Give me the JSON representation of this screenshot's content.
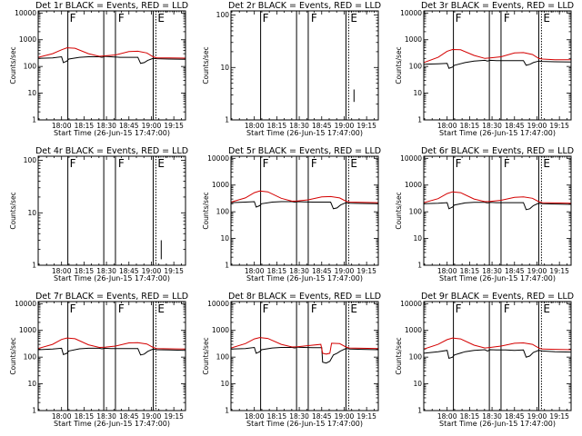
{
  "chart_data": [
    {
      "type": "line",
      "title": "Det 1r BLACK = Events, RED = LLD",
      "xlabel": "Start Time (26-Jun-15 17:47:00)",
      "ylabel": "Counts/sec",
      "yscale": "log",
      "ylim": [
        1,
        12000
      ],
      "xlim": [
        17.74,
        19.38
      ],
      "xticks": [
        "18:00",
        "18:15",
        "18:30",
        "18:45",
        "19:00",
        "19:15"
      ],
      "yticks": [
        "1",
        "10",
        "100",
        "1000",
        "10000"
      ],
      "solid_lines_x": [
        18.07,
        18.47,
        18.6,
        19.02
      ],
      "dotted_lines_x": [
        19.05
      ],
      "flags": [
        {
          "x": 18.08,
          "text": "F"
        },
        {
          "x": 18.62,
          "text": "F"
        },
        {
          "x": 19.06,
          "text": "E"
        }
      ],
      "series": [
        {
          "color": "#000000",
          "x": [
            17.74,
            17.9,
            18.0,
            18.02,
            18.06,
            18.08,
            18.2,
            18.3,
            18.42,
            18.45,
            18.48,
            18.55,
            18.65,
            18.75,
            18.85,
            18.88,
            18.92,
            18.96,
            19.02,
            19.06,
            19.2,
            19.38
          ],
          "y": [
            200,
            210,
            230,
            140,
            160,
            190,
            220,
            230,
            230,
            220,
            240,
            230,
            220,
            220,
            220,
            130,
            140,
            170,
            200,
            195,
            190,
            185
          ]
        },
        {
          "color": "#d40000",
          "x": [
            17.74,
            17.9,
            18.0,
            18.06,
            18.15,
            18.3,
            18.42,
            18.48,
            18.6,
            18.75,
            18.85,
            18.95,
            19.02,
            19.06,
            19.2,
            19.38
          ],
          "y": [
            220,
            300,
            420,
            500,
            480,
            300,
            240,
            250,
            270,
            360,
            370,
            320,
            230,
            210,
            210,
            205
          ]
        }
      ]
    },
    {
      "type": "line",
      "title": "Det 2r BLACK = Events, RED = LLD",
      "xlabel": "Start Time (26-Jun-15 17:47:00)",
      "ylabel": "Counts/sec",
      "yscale": "log",
      "ylim": [
        1,
        120
      ],
      "xlim": [
        17.74,
        19.38
      ],
      "xticks": [
        "18:00",
        "18:15",
        "18:30",
        "18:45",
        "19:00",
        "19:15"
      ],
      "yticks": [
        "1",
        "10",
        "100"
      ],
      "solid_lines_x": [
        18.07,
        18.47,
        18.6,
        19.02
      ],
      "dotted_lines_x": [
        19.05
      ],
      "flags": [
        {
          "x": 18.08,
          "text": "F"
        },
        {
          "x": 18.62,
          "text": "F"
        },
        {
          "x": 19.06,
          "text": "E"
        }
      ],
      "series": [
        {
          "color": "#000000",
          "x": [
            19.11,
            19.11
          ],
          "y": [
            2.2,
            3.8
          ]
        }
      ]
    },
    {
      "type": "line",
      "title": "Det 3r BLACK = Events, RED = LLD",
      "xlabel": "Start Time (26-Jun-15 17:47:00)",
      "ylabel": "Counts/sec",
      "yscale": "log",
      "ylim": [
        1,
        12000
      ],
      "xlim": [
        17.74,
        19.38
      ],
      "xticks": [
        "18:00",
        "18:15",
        "18:30",
        "18:45",
        "19:00",
        "19:15"
      ],
      "yticks": [
        "1",
        "10",
        "100",
        "1000",
        "10000"
      ],
      "solid_lines_x": [
        18.07,
        18.47,
        18.6,
        19.02
      ],
      "dotted_lines_x": [
        19.05
      ],
      "flags": [
        {
          "x": 18.08,
          "text": "F"
        },
        {
          "x": 18.62,
          "text": "F"
        },
        {
          "x": 19.06,
          "text": "E"
        }
      ],
      "series": [
        {
          "color": "#000000",
          "x": [
            17.74,
            17.9,
            18.0,
            18.02,
            18.06,
            18.08,
            18.2,
            18.3,
            18.42,
            18.45,
            18.48,
            18.55,
            18.65,
            18.75,
            18.85,
            18.88,
            18.92,
            18.96,
            19.02,
            19.06,
            19.2,
            19.38
          ],
          "y": [
            120,
            125,
            130,
            85,
            95,
            110,
            140,
            160,
            170,
            160,
            170,
            165,
            165,
            165,
            165,
            110,
            120,
            140,
            160,
            155,
            150,
            148
          ]
        },
        {
          "color": "#d40000",
          "x": [
            17.74,
            17.9,
            18.0,
            18.06,
            18.15,
            18.3,
            18.42,
            18.48,
            18.6,
            18.75,
            18.85,
            18.95,
            19.02,
            19.06,
            19.2,
            19.38
          ],
          "y": [
            140,
            220,
            370,
            430,
            420,
            260,
            200,
            210,
            230,
            320,
            330,
            280,
            200,
            190,
            180,
            178
          ]
        }
      ]
    },
    {
      "type": "line",
      "title": "Det 4r BLACK = Events, RED = LLD",
      "xlabel": "Start Time (26-Jun-15 17:47:00)",
      "ylabel": "Counts/sec",
      "yscale": "log",
      "ylim": [
        1,
        120
      ],
      "xlim": [
        17.74,
        19.38
      ],
      "xticks": [
        "18:00",
        "18:15",
        "18:30",
        "18:45",
        "19:00",
        "19:15"
      ],
      "yticks": [
        "1",
        "10",
        "100"
      ],
      "solid_lines_x": [
        18.07,
        18.47,
        18.6,
        19.02
      ],
      "dotted_lines_x": [
        19.05
      ],
      "flags": [
        {
          "x": 18.08,
          "text": "F"
        },
        {
          "x": 18.62,
          "text": "F"
        },
        {
          "x": 19.06,
          "text": "E"
        }
      ],
      "series": [
        {
          "color": "#000000",
          "x": [
            19.11,
            19.11
          ],
          "y": [
            1.3,
            3.0
          ]
        }
      ]
    },
    {
      "type": "line",
      "title": "Det 5r BLACK = Events, RED = LLD",
      "xlabel": "Start Time (26-Jun-15 17:47:00)",
      "ylabel": "Counts/sec",
      "yscale": "log",
      "ylim": [
        1,
        12000
      ],
      "xlim": [
        17.74,
        19.38
      ],
      "xticks": [
        "18:00",
        "18:15",
        "18:30",
        "18:45",
        "19:00",
        "19:15"
      ],
      "yticks": [
        "1",
        "10",
        "100",
        "1000",
        "10000"
      ],
      "solid_lines_x": [
        18.07,
        18.47,
        18.6,
        19.02
      ],
      "dotted_lines_x": [
        19.05
      ],
      "flags": [
        {
          "x": 18.08,
          "text": "F"
        },
        {
          "x": 18.62,
          "text": "F"
        },
        {
          "x": 19.06,
          "text": "E"
        }
      ],
      "series": [
        {
          "color": "#000000",
          "x": [
            17.74,
            17.9,
            18.0,
            18.02,
            18.06,
            18.08,
            18.2,
            18.3,
            18.42,
            18.45,
            18.48,
            18.55,
            18.65,
            18.75,
            18.85,
            18.88,
            18.92,
            18.96,
            19.02,
            19.06,
            19.2,
            19.38
          ],
          "y": [
            220,
            230,
            240,
            150,
            170,
            200,
            230,
            240,
            240,
            230,
            240,
            235,
            230,
            230,
            230,
            130,
            140,
            180,
            220,
            210,
            205,
            200
          ]
        },
        {
          "color": "#d40000",
          "x": [
            17.74,
            17.9,
            18.0,
            18.06,
            18.15,
            18.3,
            18.42,
            18.48,
            18.6,
            18.75,
            18.85,
            18.95,
            19.02,
            19.06,
            19.2,
            19.38
          ],
          "y": [
            230,
            330,
            520,
            600,
            560,
            320,
            250,
            255,
            280,
            360,
            370,
            330,
            250,
            230,
            225,
            220
          ]
        }
      ]
    },
    {
      "type": "line",
      "title": "Det 6r BLACK = Events, RED = LLD",
      "xlabel": "Start Time (26-Jun-15 17:47:00)",
      "ylabel": "Counts/sec",
      "yscale": "log",
      "ylim": [
        1,
        12000
      ],
      "xlim": [
        17.74,
        19.38
      ],
      "xticks": [
        "18:00",
        "18:15",
        "18:30",
        "18:45",
        "19:00",
        "19:15"
      ],
      "yticks": [
        "1",
        "10",
        "100",
        "1000",
        "10000"
      ],
      "solid_lines_x": [
        18.07,
        18.47,
        18.6,
        19.02
      ],
      "dotted_lines_x": [
        19.05
      ],
      "flags": [
        {
          "x": 18.08,
          "text": "F"
        },
        {
          "x": 18.62,
          "text": "F"
        },
        {
          "x": 19.06,
          "text": "E"
        }
      ],
      "series": [
        {
          "color": "#000000",
          "x": [
            17.74,
            17.9,
            18.0,
            18.02,
            18.06,
            18.08,
            18.2,
            18.3,
            18.42,
            18.45,
            18.48,
            18.55,
            18.65,
            18.75,
            18.85,
            18.88,
            18.92,
            18.96,
            19.02,
            19.06,
            19.2,
            19.38
          ],
          "y": [
            200,
            210,
            220,
            130,
            150,
            180,
            215,
            225,
            225,
            215,
            225,
            220,
            220,
            220,
            220,
            120,
            130,
            170,
            210,
            200,
            195,
            190
          ]
        },
        {
          "color": "#d40000",
          "x": [
            17.74,
            17.9,
            18.0,
            18.06,
            18.15,
            18.3,
            18.42,
            18.48,
            18.6,
            18.75,
            18.85,
            18.95,
            19.02,
            19.06,
            19.2,
            19.38
          ],
          "y": [
            220,
            310,
            480,
            560,
            520,
            300,
            240,
            245,
            270,
            350,
            360,
            320,
            240,
            220,
            215,
            210
          ]
        }
      ]
    },
    {
      "type": "line",
      "title": "Det 7r BLACK = Events, RED = LLD",
      "xlabel": "Start Time (26-Jun-15 17:47:00)",
      "ylabel": "Counts/sec",
      "yscale": "log",
      "ylim": [
        1,
        12000
      ],
      "xlim": [
        17.74,
        19.38
      ],
      "xticks": [
        "18:00",
        "18:15",
        "18:30",
        "18:45",
        "19:00",
        "19:15"
      ],
      "yticks": [
        "1",
        "10",
        "100",
        "1000",
        "10000"
      ],
      "solid_lines_x": [
        18.07,
        18.47,
        18.6,
        19.02
      ],
      "dotted_lines_x": [
        19.05
      ],
      "flags": [
        {
          "x": 18.08,
          "text": "F"
        },
        {
          "x": 18.62,
          "text": "F"
        },
        {
          "x": 19.06,
          "text": "E"
        }
      ],
      "series": [
        {
          "color": "#000000",
          "x": [
            17.74,
            17.9,
            18.0,
            18.02,
            18.06,
            18.08,
            18.2,
            18.3,
            18.42,
            18.45,
            18.48,
            18.55,
            18.65,
            18.75,
            18.85,
            18.88,
            18.92,
            18.96,
            19.02,
            19.06,
            19.2,
            19.38
          ],
          "y": [
            190,
            200,
            215,
            125,
            140,
            170,
            205,
            215,
            215,
            205,
            215,
            210,
            210,
            210,
            210,
            120,
            130,
            165,
            200,
            190,
            185,
            180
          ]
        },
        {
          "color": "#d40000",
          "x": [
            17.74,
            17.9,
            18.0,
            18.06,
            18.15,
            18.3,
            18.42,
            18.48,
            18.6,
            18.75,
            18.85,
            18.95,
            19.02,
            19.06,
            19.2,
            19.38
          ],
          "y": [
            210,
            300,
            460,
            520,
            490,
            290,
            230,
            235,
            260,
            340,
            350,
            310,
            230,
            210,
            205,
            200
          ]
        }
      ]
    },
    {
      "type": "line",
      "title": "Det 8r BLACK = Events, RED = LLD",
      "xlabel": "Start Time (26-Jun-15 17:47:00)",
      "ylabel": "Counts/sec",
      "yscale": "log",
      "ylim": [
        1,
        12000
      ],
      "xlim": [
        17.74,
        19.38
      ],
      "xticks": [
        "18:00",
        "18:15",
        "18:30",
        "18:45",
        "19:00",
        "19:15"
      ],
      "yticks": [
        "1",
        "10",
        "100",
        "1000",
        "10000"
      ],
      "solid_lines_x": [
        18.07,
        18.47,
        18.6,
        19.02
      ],
      "dotted_lines_x": [
        19.05
      ],
      "flags": [
        {
          "x": 18.08,
          "text": "F"
        },
        {
          "x": 18.62,
          "text": "F"
        },
        {
          "x": 19.06,
          "text": "E"
        }
      ],
      "series": [
        {
          "color": "#000000",
          "x": [
            17.74,
            17.9,
            18.0,
            18.02,
            18.06,
            18.08,
            18.2,
            18.3,
            18.42,
            18.45,
            18.48,
            18.55,
            18.65,
            18.75,
            18.76,
            18.8,
            18.84,
            18.88,
            18.92,
            18.96,
            19.02,
            19.06,
            19.2,
            19.38
          ],
          "y": [
            200,
            210,
            230,
            140,
            160,
            190,
            220,
            230,
            230,
            220,
            235,
            230,
            225,
            225,
            65,
            60,
            70,
            120,
            140,
            170,
            210,
            200,
            195,
            190
          ]
        },
        {
          "color": "#d40000",
          "x": [
            17.74,
            17.9,
            18.0,
            18.06,
            18.15,
            18.3,
            18.42,
            18.48,
            18.6,
            18.74,
            18.76,
            18.8,
            18.84,
            18.86,
            18.95,
            19.02,
            19.06,
            19.2,
            19.38
          ],
          "y": [
            220,
            320,
            480,
            540,
            500,
            300,
            240,
            245,
            270,
            300,
            140,
            130,
            140,
            330,
            320,
            240,
            220,
            215,
            210
          ]
        }
      ]
    },
    {
      "type": "line",
      "title": "Det 9r BLACK = Events, RED = LLD",
      "xlabel": "Start Time (26-Jun-15 17:47:00)",
      "ylabel": "Counts/sec",
      "yscale": "log",
      "ylim": [
        1,
        12000
      ],
      "xlim": [
        17.74,
        19.38
      ],
      "xticks": [
        "18:00",
        "18:15",
        "18:30",
        "18:45",
        "19:00",
        "19:15"
      ],
      "yticks": [
        "1",
        "10",
        "100",
        "1000",
        "10000"
      ],
      "solid_lines_x": [
        18.07,
        18.47,
        18.6,
        19.02
      ],
      "dotted_lines_x": [
        19.05
      ],
      "flags": [
        {
          "x": 18.08,
          "text": "F"
        },
        {
          "x": 18.62,
          "text": "F"
        },
        {
          "x": 19.06,
          "text": "E"
        }
      ],
      "series": [
        {
          "color": "#000000",
          "x": [
            17.74,
            17.9,
            18.0,
            18.02,
            18.06,
            18.08,
            18.2,
            18.3,
            18.42,
            18.45,
            18.48,
            18.55,
            18.65,
            18.75,
            18.85,
            18.88,
            18.92,
            18.96,
            19.02,
            19.06,
            19.2,
            19.38
          ],
          "y": [
            140,
            160,
            180,
            90,
            100,
            120,
            160,
            180,
            190,
            170,
            190,
            185,
            185,
            180,
            185,
            100,
            110,
            150,
            180,
            170,
            160,
            155
          ]
        },
        {
          "color": "#d40000",
          "x": [
            17.74,
            17.9,
            18.0,
            18.06,
            18.15,
            18.3,
            18.42,
            18.48,
            18.6,
            18.75,
            18.85,
            18.95,
            19.02,
            19.06,
            19.2,
            19.38
          ],
          "y": [
            200,
            300,
            450,
            520,
            480,
            280,
            220,
            230,
            260,
            330,
            340,
            300,
            220,
            200,
            195,
            190
          ]
        }
      ]
    }
  ]
}
